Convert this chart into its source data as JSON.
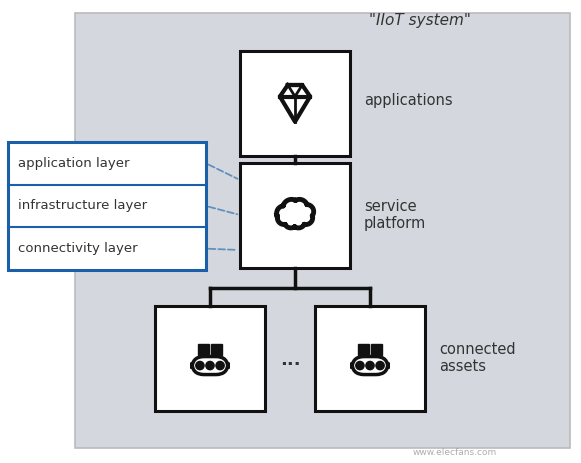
{
  "title": "\"IIoT system\"",
  "bg_color": "#d4d8de",
  "box_color": "#ffffff",
  "box_edge": "#111111",
  "blue_edge": "#1a5fa8",
  "label_app": "applications",
  "label_svc": "service\nplatform",
  "label_asset": "connected\nassets",
  "layer_labels": [
    "application layer",
    "infrastructure layer",
    "connectivity layer"
  ],
  "dots_text": "...",
  "text_color": "#333333",
  "font_size": 10,
  "watermark": "www.elecfans.com"
}
